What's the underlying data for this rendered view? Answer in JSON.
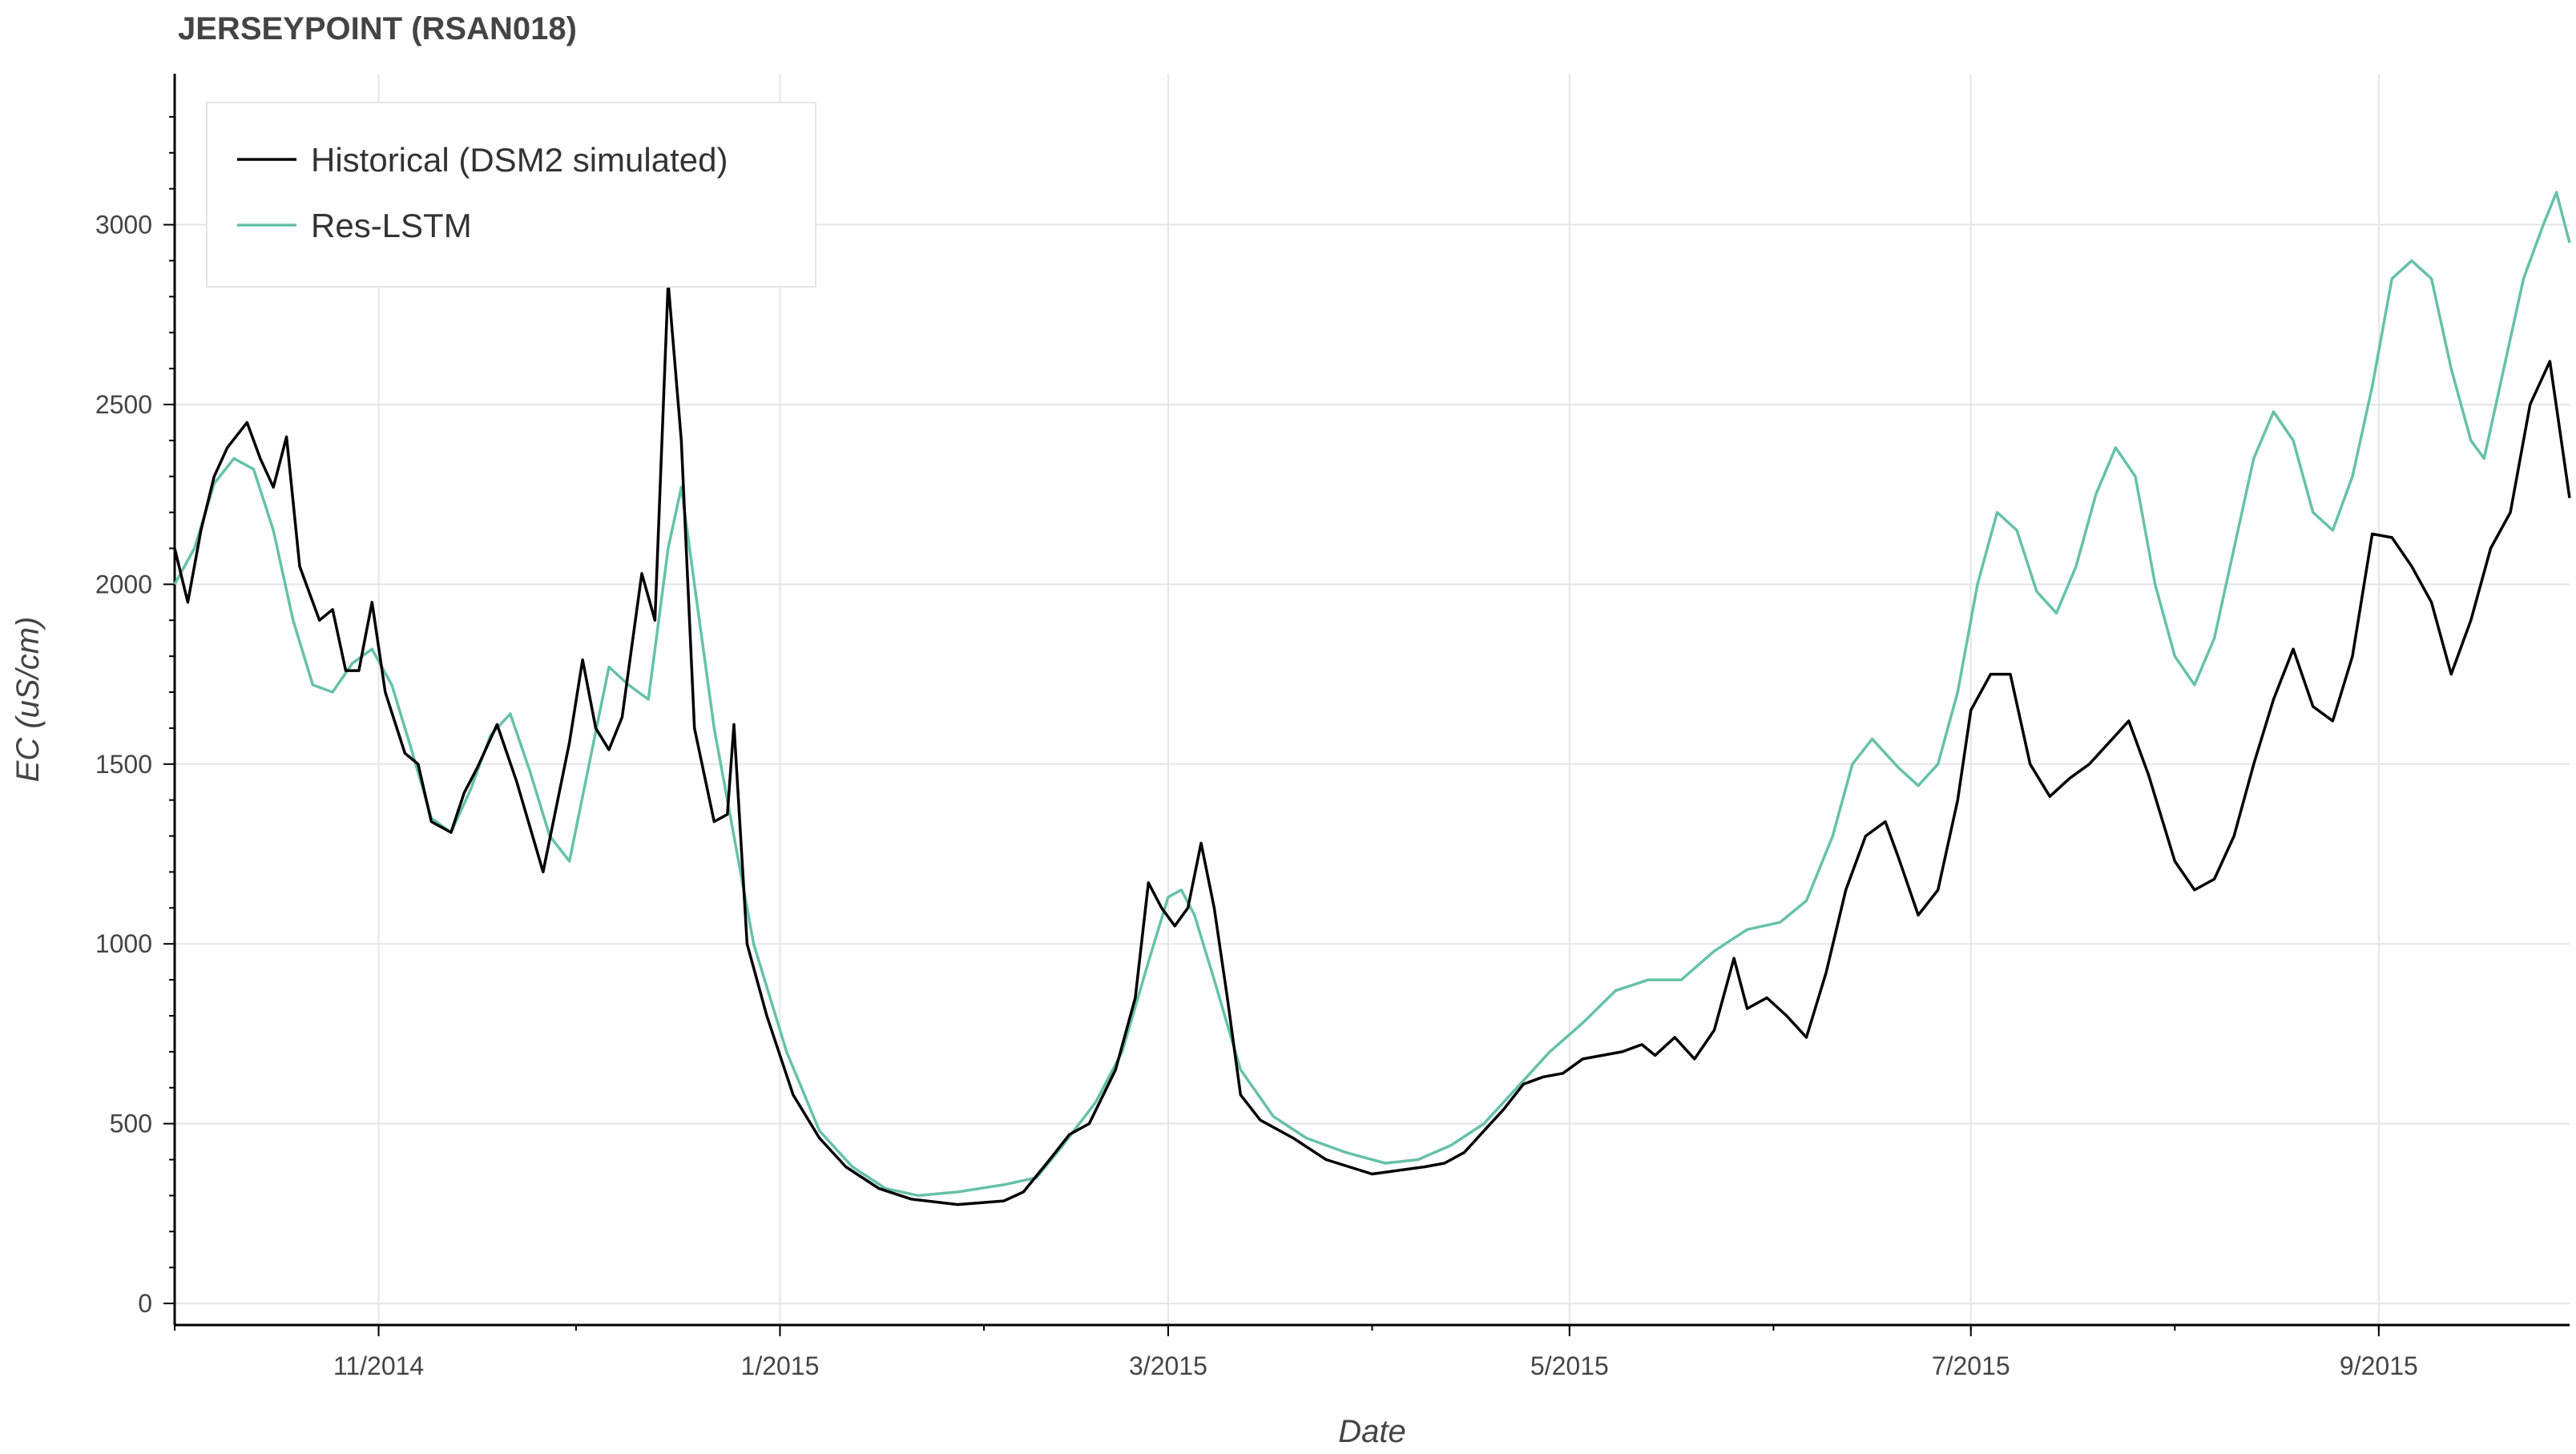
{
  "title": "JERSEYPOINT (RSAN018)",
  "colors": {
    "historical": "#000000",
    "res_lstm": "#66c2a5",
    "grid": "#e5e5e5",
    "axis": "#000000",
    "text": "#444444"
  },
  "chart_data": {
    "type": "line",
    "title": "JERSEYPOINT (RSAN018)",
    "xlabel": "Date",
    "ylabel": "EC (uS/cm)",
    "xlim": [
      "2014-10-01",
      "2015-09-30"
    ],
    "ylim": [
      -60,
      3420
    ],
    "x_ticks": [
      {
        "date": "2014-11-01",
        "label": "11/2014"
      },
      {
        "date": "2015-01-01",
        "label": "1/2015"
      },
      {
        "date": "2015-03-01",
        "label": "3/2015"
      },
      {
        "date": "2015-05-01",
        "label": "5/2015"
      },
      {
        "date": "2015-07-01",
        "label": "7/2015"
      },
      {
        "date": "2015-09-01",
        "label": "9/2015"
      }
    ],
    "y_ticks": [
      0,
      500,
      1000,
      1500,
      2000,
      2500,
      3000
    ],
    "grid": true,
    "legend_position": "top-left",
    "series": [
      {
        "name": "Historical (DSM2 simulated)",
        "color": "#000000",
        "points": [
          [
            "2014-10-01",
            2100
          ],
          [
            "2014-10-03",
            1950
          ],
          [
            "2014-10-05",
            2150
          ],
          [
            "2014-10-07",
            2300
          ],
          [
            "2014-10-09",
            2380
          ],
          [
            "2014-10-12",
            2450
          ],
          [
            "2014-10-14",
            2350
          ],
          [
            "2014-10-16",
            2270
          ],
          [
            "2014-10-18",
            2410
          ],
          [
            "2014-10-20",
            2050
          ],
          [
            "2014-10-23",
            1900
          ],
          [
            "2014-10-25",
            1930
          ],
          [
            "2014-10-27",
            1760
          ],
          [
            "2014-10-29",
            1760
          ],
          [
            "2014-10-31",
            1950
          ],
          [
            "2014-11-02",
            1700
          ],
          [
            "2014-11-05",
            1530
          ],
          [
            "2014-11-07",
            1500
          ],
          [
            "2014-11-09",
            1340
          ],
          [
            "2014-11-12",
            1310
          ],
          [
            "2014-11-14",
            1420
          ],
          [
            "2014-11-16",
            1490
          ],
          [
            "2014-11-19",
            1610
          ],
          [
            "2014-11-22",
            1450
          ],
          [
            "2014-11-26",
            1200
          ],
          [
            "2014-11-30",
            1560
          ],
          [
            "2014-12-02",
            1790
          ],
          [
            "2014-12-04",
            1600
          ],
          [
            "2014-12-06",
            1540
          ],
          [
            "2014-12-08",
            1630
          ],
          [
            "2014-12-11",
            2030
          ],
          [
            "2014-12-13",
            1900
          ],
          [
            "2014-12-15",
            2840
          ],
          [
            "2014-12-17",
            2400
          ],
          [
            "2014-12-19",
            1600
          ],
          [
            "2014-12-22",
            1340
          ],
          [
            "2014-12-24",
            1360
          ],
          [
            "2014-12-25",
            1610
          ],
          [
            "2014-12-27",
            1000
          ],
          [
            "2014-12-30",
            800
          ],
          [
            "2015-01-03",
            580
          ],
          [
            "2015-01-07",
            460
          ],
          [
            "2015-01-11",
            380
          ],
          [
            "2015-01-16",
            320
          ],
          [
            "2015-01-21",
            290
          ],
          [
            "2015-01-28",
            275
          ],
          [
            "2015-02-04",
            285
          ],
          [
            "2015-02-07",
            310
          ],
          [
            "2015-02-11",
            400
          ],
          [
            "2015-02-14",
            470
          ],
          [
            "2015-02-17",
            500
          ],
          [
            "2015-02-21",
            650
          ],
          [
            "2015-02-24",
            850
          ],
          [
            "2015-02-26",
            1170
          ],
          [
            "2015-02-28",
            1100
          ],
          [
            "2015-03-02",
            1050
          ],
          [
            "2015-03-04",
            1100
          ],
          [
            "2015-03-06",
            1280
          ],
          [
            "2015-03-08",
            1100
          ],
          [
            "2015-03-10",
            850
          ],
          [
            "2015-03-12",
            580
          ],
          [
            "2015-03-15",
            510
          ],
          [
            "2015-03-20",
            460
          ],
          [
            "2015-03-25",
            400
          ],
          [
            "2015-04-01",
            360
          ],
          [
            "2015-04-05",
            370
          ],
          [
            "2015-04-09",
            380
          ],
          [
            "2015-04-12",
            390
          ],
          [
            "2015-04-15",
            420
          ],
          [
            "2015-04-18",
            480
          ],
          [
            "2015-04-21",
            540
          ],
          [
            "2015-04-24",
            610
          ],
          [
            "2015-04-27",
            630
          ],
          [
            "2015-04-30",
            640
          ],
          [
            "2015-05-03",
            680
          ],
          [
            "2015-05-06",
            690
          ],
          [
            "2015-05-09",
            700
          ],
          [
            "2015-05-12",
            720
          ],
          [
            "2015-05-14",
            690
          ],
          [
            "2015-05-17",
            740
          ],
          [
            "2015-05-20",
            680
          ],
          [
            "2015-05-23",
            760
          ],
          [
            "2015-05-26",
            960
          ],
          [
            "2015-05-28",
            820
          ],
          [
            "2015-05-31",
            850
          ],
          [
            "2015-06-03",
            800
          ],
          [
            "2015-06-06",
            740
          ],
          [
            "2015-06-09",
            920
          ],
          [
            "2015-06-12",
            1150
          ],
          [
            "2015-06-15",
            1300
          ],
          [
            "2015-06-18",
            1340
          ],
          [
            "2015-06-20",
            1240
          ],
          [
            "2015-06-23",
            1080
          ],
          [
            "2015-06-26",
            1150
          ],
          [
            "2015-06-29",
            1400
          ],
          [
            "2015-07-01",
            1650
          ],
          [
            "2015-07-04",
            1750
          ],
          [
            "2015-07-07",
            1750
          ],
          [
            "2015-07-10",
            1500
          ],
          [
            "2015-07-13",
            1410
          ],
          [
            "2015-07-16",
            1460
          ],
          [
            "2015-07-19",
            1500
          ],
          [
            "2015-07-22",
            1560
          ],
          [
            "2015-07-25",
            1620
          ],
          [
            "2015-07-28",
            1470
          ],
          [
            "2015-08-01",
            1230
          ],
          [
            "2015-08-04",
            1150
          ],
          [
            "2015-08-07",
            1180
          ],
          [
            "2015-08-10",
            1300
          ],
          [
            "2015-08-13",
            1500
          ],
          [
            "2015-08-16",
            1680
          ],
          [
            "2015-08-19",
            1820
          ],
          [
            "2015-08-22",
            1660
          ],
          [
            "2015-08-25",
            1620
          ],
          [
            "2015-08-28",
            1800
          ],
          [
            "2015-08-31",
            2140
          ],
          [
            "2015-09-03",
            2130
          ],
          [
            "2015-09-06",
            2050
          ],
          [
            "2015-09-09",
            1950
          ],
          [
            "2015-09-12",
            1750
          ],
          [
            "2015-09-15",
            1900
          ],
          [
            "2015-09-18",
            2100
          ],
          [
            "2015-09-21",
            2200
          ],
          [
            "2015-09-24",
            2500
          ],
          [
            "2015-09-27",
            2620
          ],
          [
            "2015-09-30",
            2240
          ]
        ]
      },
      {
        "name": "Res-LSTM",
        "color": "#66c2a5",
        "points": [
          [
            "2014-10-01",
            2000
          ],
          [
            "2014-10-04",
            2100
          ],
          [
            "2014-10-07",
            2280
          ],
          [
            "2014-10-10",
            2350
          ],
          [
            "2014-10-13",
            2320
          ],
          [
            "2014-10-16",
            2150
          ],
          [
            "2014-10-19",
            1900
          ],
          [
            "2014-10-22",
            1720
          ],
          [
            "2014-10-25",
            1700
          ],
          [
            "2014-10-28",
            1780
          ],
          [
            "2014-10-31",
            1820
          ],
          [
            "2014-11-03",
            1720
          ],
          [
            "2014-11-06",
            1540
          ],
          [
            "2014-11-09",
            1350
          ],
          [
            "2014-11-12",
            1310
          ],
          [
            "2014-11-15",
            1430
          ],
          [
            "2014-11-18",
            1580
          ],
          [
            "2014-11-21",
            1640
          ],
          [
            "2014-11-24",
            1480
          ],
          [
            "2014-11-27",
            1300
          ],
          [
            "2014-11-30",
            1230
          ],
          [
            "2014-12-03",
            1500
          ],
          [
            "2014-12-06",
            1770
          ],
          [
            "2014-12-09",
            1720
          ],
          [
            "2014-12-12",
            1680
          ],
          [
            "2014-12-15",
            2100
          ],
          [
            "2014-12-17",
            2270
          ],
          [
            "2014-12-19",
            2000
          ],
          [
            "2014-12-22",
            1600
          ],
          [
            "2014-12-25",
            1300
          ],
          [
            "2014-12-28",
            1000
          ],
          [
            "2015-01-02",
            700
          ],
          [
            "2015-01-07",
            480
          ],
          [
            "2015-01-12",
            380
          ],
          [
            "2015-01-17",
            320
          ],
          [
            "2015-01-22",
            300
          ],
          [
            "2015-01-28",
            310
          ],
          [
            "2015-02-04",
            330
          ],
          [
            "2015-02-09",
            350
          ],
          [
            "2015-02-13",
            440
          ],
          [
            "2015-02-18",
            560
          ],
          [
            "2015-02-22",
            700
          ],
          [
            "2015-02-26",
            950
          ],
          [
            "2015-03-01",
            1130
          ],
          [
            "2015-03-03",
            1150
          ],
          [
            "2015-03-05",
            1080
          ],
          [
            "2015-03-08",
            900
          ],
          [
            "2015-03-12",
            650
          ],
          [
            "2015-03-17",
            520
          ],
          [
            "2015-03-22",
            460
          ],
          [
            "2015-03-28",
            420
          ],
          [
            "2015-04-03",
            390
          ],
          [
            "2015-04-08",
            400
          ],
          [
            "2015-04-13",
            440
          ],
          [
            "2015-04-18",
            500
          ],
          [
            "2015-04-23",
            600
          ],
          [
            "2015-04-28",
            700
          ],
          [
            "2015-05-03",
            780
          ],
          [
            "2015-05-08",
            870
          ],
          [
            "2015-05-13",
            900
          ],
          [
            "2015-05-18",
            900
          ],
          [
            "2015-05-23",
            980
          ],
          [
            "2015-05-28",
            1040
          ],
          [
            "2015-06-02",
            1060
          ],
          [
            "2015-06-06",
            1120
          ],
          [
            "2015-06-10",
            1300
          ],
          [
            "2015-06-13",
            1500
          ],
          [
            "2015-06-16",
            1570
          ],
          [
            "2015-06-20",
            1490
          ],
          [
            "2015-06-23",
            1440
          ],
          [
            "2015-06-26",
            1500
          ],
          [
            "2015-06-29",
            1700
          ],
          [
            "2015-07-02",
            2000
          ],
          [
            "2015-07-05",
            2200
          ],
          [
            "2015-07-08",
            2150
          ],
          [
            "2015-07-11",
            1980
          ],
          [
            "2015-07-14",
            1920
          ],
          [
            "2015-07-17",
            2050
          ],
          [
            "2015-07-20",
            2250
          ],
          [
            "2015-07-23",
            2380
          ],
          [
            "2015-07-26",
            2300
          ],
          [
            "2015-07-29",
            2000
          ],
          [
            "2015-08-01",
            1800
          ],
          [
            "2015-08-04",
            1720
          ],
          [
            "2015-08-07",
            1850
          ],
          [
            "2015-08-10",
            2100
          ],
          [
            "2015-08-13",
            2350
          ],
          [
            "2015-08-16",
            2480
          ],
          [
            "2015-08-19",
            2400
          ],
          [
            "2015-08-22",
            2200
          ],
          [
            "2015-08-25",
            2150
          ],
          [
            "2015-08-28",
            2300
          ],
          [
            "2015-08-31",
            2550
          ],
          [
            "2015-09-03",
            2850
          ],
          [
            "2015-09-06",
            2900
          ],
          [
            "2015-09-09",
            2850
          ],
          [
            "2015-09-12",
            2600
          ],
          [
            "2015-09-15",
            2400
          ],
          [
            "2015-09-17",
            2350
          ],
          [
            "2015-09-20",
            2600
          ],
          [
            "2015-09-23",
            2850
          ],
          [
            "2015-09-26",
            3000
          ],
          [
            "2015-09-28",
            3090
          ],
          [
            "2015-09-30",
            2950
          ]
        ]
      }
    ]
  }
}
